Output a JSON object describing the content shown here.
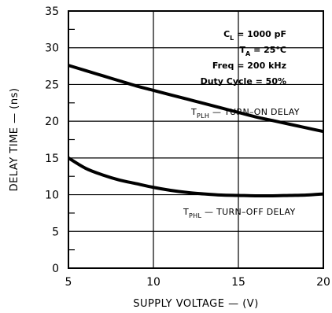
{
  "chart_data": {
    "type": "line",
    "xlabel": "SUPPLY VOLTAGE — (V)",
    "ylabel": "DELAY TIME — (ns)",
    "xlim": [
      5,
      20
    ],
    "ylim": [
      0,
      35
    ],
    "x_ticks": [
      "5",
      "10",
      "15",
      "20"
    ],
    "y_ticks": [
      "0",
      "5",
      "10",
      "15",
      "20",
      "25",
      "30",
      "35"
    ],
    "grid": true,
    "conditions": [
      {
        "label": "C",
        "sub": "L",
        "rest": " = 1000 pF"
      },
      {
        "label": "T",
        "sub": "A",
        "rest": " = 25°C"
      },
      {
        "label": "Freq = 200 kHz",
        "sub": "",
        "rest": ""
      },
      {
        "label": "Duty Cycle = 50%",
        "sub": "",
        "rest": ""
      }
    ],
    "series": [
      {
        "name_main": "T",
        "name_sub": "PLH",
        "name_rest": " — TURN–ON DELAY",
        "x": [
          5,
          6,
          7,
          8,
          9,
          10,
          11,
          12,
          13,
          14,
          15,
          16,
          17,
          18,
          19,
          20
        ],
        "y": [
          27.6,
          26.9,
          26.2,
          25.5,
          24.8,
          24.2,
          23.6,
          23.0,
          22.4,
          21.8,
          21.2,
          20.6,
          20.1,
          19.6,
          19.1,
          18.6
        ]
      },
      {
        "name_main": "T",
        "name_sub": "PHL",
        "name_rest": " — TURN–OFF DELAY",
        "x": [
          5,
          6,
          7,
          8,
          9,
          10,
          11,
          12,
          13,
          14,
          15,
          16,
          17,
          18,
          19,
          20
        ],
        "y": [
          15.0,
          13.6,
          12.7,
          12.0,
          11.5,
          11.0,
          10.6,
          10.3,
          10.1,
          9.95,
          9.9,
          9.85,
          9.85,
          9.9,
          9.95,
          10.1
        ]
      }
    ]
  }
}
